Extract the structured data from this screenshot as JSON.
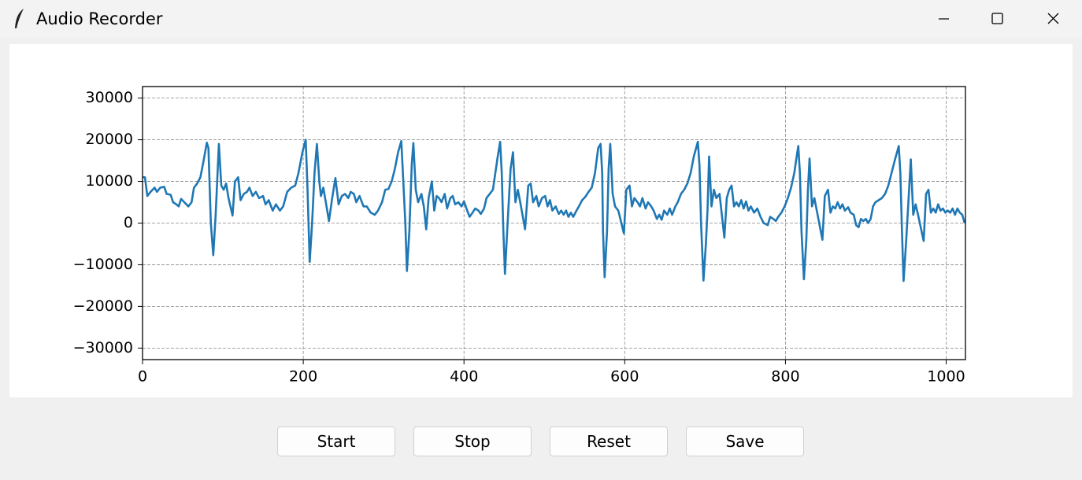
{
  "window": {
    "title": "Audio Recorder"
  },
  "chart_data": {
    "type": "line",
    "color": "#1f77b4",
    "grid": true,
    "xlim": [
      0,
      1024
    ],
    "xticks": [
      0,
      200,
      400,
      600,
      800,
      1000
    ],
    "ylim": [
      -32768,
      32767
    ],
    "yticks": [
      {
        "value": -30000,
        "label": "−30000"
      },
      {
        "value": -20000,
        "label": "−20000"
      },
      {
        "value": -10000,
        "label": "−10000"
      },
      0,
      10000,
      20000,
      30000
    ],
    "x": [
      0,
      3,
      6,
      10,
      15,
      18,
      22,
      27,
      30,
      35,
      38,
      42,
      45,
      48,
      52,
      57,
      61,
      64,
      68,
      72,
      76,
      80,
      82,
      85,
      88,
      91,
      95,
      98,
      101,
      104,
      107,
      112,
      115,
      119,
      122,
      126,
      130,
      133,
      137,
      141,
      145,
      150,
      153,
      157,
      162,
      166,
      171,
      175,
      180,
      185,
      190,
      194,
      199,
      203,
      205,
      208,
      211,
      214,
      217,
      220,
      222,
      225,
      232,
      236,
      240,
      244,
      248,
      252,
      256,
      259,
      263,
      266,
      270,
      275,
      279,
      284,
      289,
      293,
      298,
      302,
      306,
      310,
      314,
      318,
      322,
      324,
      327,
      329,
      332,
      335,
      337,
      340,
      343,
      347,
      350,
      353,
      356,
      360,
      363,
      366,
      369,
      372,
      376,
      379,
      383,
      386,
      389,
      393,
      397,
      400,
      404,
      407,
      411,
      414,
      418,
      421,
      425,
      428,
      432,
      436,
      439,
      442,
      445,
      447,
      449,
      451,
      454,
      458,
      461,
      464,
      467,
      470,
      476,
      480,
      483,
      486,
      490,
      493,
      497,
      501,
      504,
      507,
      510,
      514,
      518,
      521,
      524,
      527,
      530,
      533,
      536,
      540,
      543,
      547,
      551,
      555,
      559,
      563,
      567,
      570,
      572,
      573,
      575,
      578,
      580,
      582,
      585,
      588,
      592,
      599,
      602,
      606,
      609,
      612,
      616,
      619,
      622,
      626,
      629,
      633,
      636,
      640,
      643,
      646,
      649,
      653,
      656,
      659,
      663,
      666,
      670,
      674,
      678,
      682,
      686,
      691,
      693,
      695,
      698,
      701,
      703,
      705,
      708,
      711,
      714,
      718,
      724,
      727,
      730,
      733,
      736,
      739,
      742,
      745,
      748,
      751,
      754,
      757,
      761,
      765,
      769,
      773,
      778,
      781,
      785,
      788,
      791,
      795,
      799,
      803,
      807,
      811,
      814,
      816,
      818,
      820,
      823,
      826,
      828,
      830,
      833,
      836,
      839,
      846,
      849,
      853,
      856,
      859,
      862,
      865,
      868,
      871,
      874,
      878,
      881,
      885,
      888,
      891,
      894,
      897,
      900,
      903,
      906,
      909,
      912,
      916,
      920,
      924,
      928,
      932,
      936,
      941,
      943,
      945,
      947,
      950,
      953,
      956,
      959,
      962,
      965,
      972,
      975,
      978,
      981,
      984,
      987,
      990,
      993,
      996,
      999,
      1002,
      1005,
      1008,
      1011,
      1014,
      1017,
      1020,
      1023
    ],
    "values": [
      11000,
      11000,
      6500,
      7500,
      8500,
      7500,
      8500,
      8700,
      7000,
      6800,
      5000,
      4500,
      4000,
      5800,
      5000,
      4000,
      5000,
      8500,
      9500,
      11000,
      15000,
      19300,
      18000,
      0,
      -7700,
      2000,
      19000,
      9000,
      8000,
      9500,
      6000,
      1800,
      10000,
      11000,
      5500,
      7000,
      7500,
      8500,
      6500,
      7500,
      6000,
      6500,
      4500,
      5500,
      3000,
      4500,
      3000,
      4000,
      7500,
      8500,
      9000,
      12000,
      17000,
      20000,
      10000,
      -9300,
      0,
      12000,
      19000,
      10000,
      6500,
      8500,
      500,
      6000,
      10800,
      4500,
      6500,
      7000,
      6000,
      7500,
      7000,
      5000,
      6500,
      4000,
      4000,
      2500,
      2000,
      3000,
      5000,
      8000,
      8200,
      10000,
      13000,
      17000,
      19700,
      12000,
      0,
      -11500,
      -2000,
      14000,
      19200,
      8000,
      5000,
      7000,
      4000,
      -1500,
      6000,
      10000,
      3000,
      6500,
      6000,
      5000,
      7000,
      3500,
      6000,
      6500,
      4500,
      5000,
      4000,
      5200,
      3000,
      1500,
      2600,
      3500,
      3000,
      2200,
      3500,
      6000,
      7000,
      8000,
      12000,
      16000,
      19500,
      12000,
      -2000,
      -12200,
      -1000,
      13000,
      17000,
      5000,
      8000,
      5000,
      -1500,
      9000,
      9500,
      5000,
      6500,
      4000,
      6000,
      6500,
      4000,
      5500,
      3000,
      4000,
      2200,
      3000,
      2000,
      3000,
      1500,
      2500,
      1500,
      3000,
      4000,
      5500,
      6300,
      7500,
      8500,
      12000,
      18000,
      19000,
      12000,
      -2000,
      -13000,
      -2000,
      13000,
      19000,
      7000,
      4000,
      3000,
      -2500,
      8000,
      9000,
      4000,
      6000,
      5000,
      4000,
      6000,
      3500,
      5000,
      4000,
      3000,
      1000,
      2000,
      800,
      3000,
      2000,
      3500,
      2000,
      4000,
      5000,
      7000,
      8000,
      9500,
      12000,
      16000,
      19500,
      14000,
      0,
      -13800,
      -5000,
      3000,
      16000,
      4000,
      8000,
      6000,
      7000,
      -3500,
      6000,
      8000,
      9000,
      4000,
      5000,
      4000,
      5500,
      3500,
      5200,
      3000,
      4000,
      2500,
      3500,
      1500,
      0,
      -500,
      1500,
      1000,
      500,
      1500,
      2500,
      4000,
      6000,
      8500,
      12000,
      16000,
      18500,
      12000,
      -2000,
      -13500,
      -4000,
      8000,
      15500,
      4000,
      6000,
      3000,
      -4000,
      6500,
      8000,
      2500,
      4000,
      3500,
      5000,
      3500,
      4500,
      3000,
      3800,
      2500,
      2000,
      -500,
      -1000,
      1000,
      500,
      1000,
      0,
      1000,
      4000,
      5000,
      5500,
      6000,
      7000,
      9000,
      12000,
      15000,
      18500,
      12000,
      -2000,
      -13900,
      -5000,
      5000,
      15300,
      2000,
      4500,
      2000,
      -4300,
      7000,
      8000,
      2500,
      3500,
      2500,
      4500,
      3000,
      3500,
      2500,
      3000,
      2500,
      3500,
      2000,
      3500,
      2500,
      2000,
      0
    ]
  },
  "buttons": [
    "Start",
    "Stop",
    "Reset",
    "Save"
  ]
}
